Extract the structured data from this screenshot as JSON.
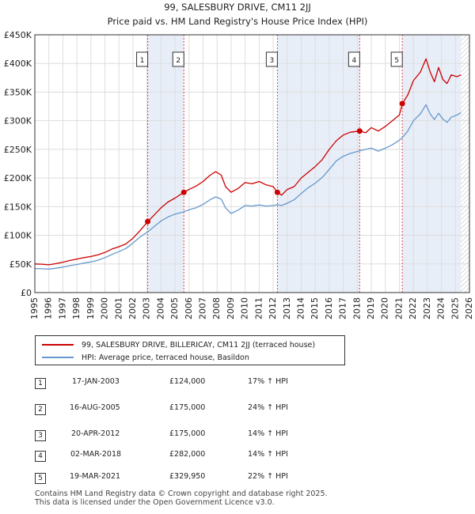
{
  "chart_data": {
    "type": "line",
    "title": [
      "99, SALESBURY DRIVE, CM11 2JJ",
      "Price paid vs. HM Land Registry's House Price Index (HPI)"
    ],
    "x_ticks": [
      "1995",
      "1996",
      "1997",
      "1998",
      "1999",
      "2000",
      "2001",
      "2002",
      "2003",
      "2004",
      "2005",
      "2006",
      "2007",
      "2008",
      "2009",
      "2010",
      "2011",
      "2012",
      "2013",
      "2014",
      "2015",
      "2016",
      "2017",
      "2018",
      "2019",
      "2020",
      "2021",
      "2022",
      "2023",
      "2024",
      "2025",
      "2026"
    ],
    "xlim": [
      1995,
      2026
    ],
    "y_ticks": [
      "£0",
      "£50K",
      "£100K",
      "£150K",
      "£200K",
      "£250K",
      "£300K",
      "£350K",
      "£400K",
      "£450K"
    ],
    "ylim": [
      0,
      450000
    ],
    "series": [
      {
        "name": "99, SALESBURY DRIVE, BILLERICAY, CM11 2JJ (terraced house)",
        "color": "#cc0000",
        "points": [
          [
            1995.0,
            50000
          ],
          [
            1995.5,
            49500
          ],
          [
            1996.0,
            48500
          ],
          [
            1996.5,
            50500
          ],
          [
            1997.0,
            53000
          ],
          [
            1997.5,
            56000
          ],
          [
            1998.0,
            58500
          ],
          [
            1998.5,
            61000
          ],
          [
            1999.0,
            63000
          ],
          [
            1999.5,
            66000
          ],
          [
            2000.0,
            70000
          ],
          [
            2000.5,
            76000
          ],
          [
            2001.0,
            80000
          ],
          [
            2001.5,
            85000
          ],
          [
            2002.0,
            95000
          ],
          [
            2002.5,
            108000
          ],
          [
            2003.05,
            124000
          ],
          [
            2003.5,
            135000
          ],
          [
            2004.0,
            148000
          ],
          [
            2004.5,
            158000
          ],
          [
            2005.0,
            165000
          ],
          [
            2005.63,
            175000
          ],
          [
            2006.0,
            180000
          ],
          [
            2006.5,
            186000
          ],
          [
            2007.0,
            194000
          ],
          [
            2007.5,
            205000
          ],
          [
            2007.9,
            211000
          ],
          [
            2008.3,
            205000
          ],
          [
            2008.6,
            185000
          ],
          [
            2009.0,
            175000
          ],
          [
            2009.5,
            182000
          ],
          [
            2010.0,
            192000
          ],
          [
            2010.5,
            190000
          ],
          [
            2011.0,
            194000
          ],
          [
            2011.5,
            188000
          ],
          [
            2012.0,
            185000
          ],
          [
            2012.3,
            175000
          ],
          [
            2012.6,
            170000
          ],
          [
            2013.0,
            180000
          ],
          [
            2013.5,
            185000
          ],
          [
            2014.0,
            200000
          ],
          [
            2014.5,
            210000
          ],
          [
            2015.0,
            220000
          ],
          [
            2015.5,
            232000
          ],
          [
            2016.0,
            250000
          ],
          [
            2016.5,
            265000
          ],
          [
            2017.0,
            275000
          ],
          [
            2017.5,
            280000
          ],
          [
            2018.17,
            282000
          ],
          [
            2018.6,
            279000
          ],
          [
            2019.0,
            288000
          ],
          [
            2019.5,
            282000
          ],
          [
            2020.0,
            290000
          ],
          [
            2020.5,
            300000
          ],
          [
            2021.0,
            310000
          ],
          [
            2021.21,
            329950
          ],
          [
            2021.6,
            345000
          ],
          [
            2022.0,
            370000
          ],
          [
            2022.5,
            385000
          ],
          [
            2022.9,
            408000
          ],
          [
            2023.2,
            385000
          ],
          [
            2023.5,
            368000
          ],
          [
            2023.8,
            393000
          ],
          [
            2024.1,
            372000
          ],
          [
            2024.4,
            365000
          ],
          [
            2024.7,
            380000
          ],
          [
            2025.1,
            377000
          ],
          [
            2025.4,
            380000
          ]
        ]
      },
      {
        "name": "HPI: Average price, terraced house, Basildon",
        "color": "#6699cc",
        "points": [
          [
            1995.0,
            42000
          ],
          [
            1995.5,
            41500
          ],
          [
            1996.0,
            41000
          ],
          [
            1996.5,
            42500
          ],
          [
            1997.0,
            44500
          ],
          [
            1997.5,
            47000
          ],
          [
            1998.0,
            49000
          ],
          [
            1998.5,
            51500
          ],
          [
            1999.0,
            53500
          ],
          [
            1999.5,
            56500
          ],
          [
            2000.0,
            61000
          ],
          [
            2000.5,
            66500
          ],
          [
            2001.0,
            71500
          ],
          [
            2001.5,
            77000
          ],
          [
            2002.0,
            86500
          ],
          [
            2002.5,
            97000
          ],
          [
            2003.05,
            106000
          ],
          [
            2003.5,
            115000
          ],
          [
            2004.0,
            125000
          ],
          [
            2004.5,
            132000
          ],
          [
            2005.0,
            137000
          ],
          [
            2005.63,
            141000
          ],
          [
            2006.0,
            144500
          ],
          [
            2006.5,
            148000
          ],
          [
            2007.0,
            154000
          ],
          [
            2007.5,
            162000
          ],
          [
            2007.9,
            167000
          ],
          [
            2008.3,
            163000
          ],
          [
            2008.6,
            148000
          ],
          [
            2009.0,
            138000
          ],
          [
            2009.5,
            144000
          ],
          [
            2010.0,
            152000
          ],
          [
            2010.5,
            151000
          ],
          [
            2011.0,
            153000
          ],
          [
            2011.5,
            151000
          ],
          [
            2012.0,
            152000
          ],
          [
            2012.3,
            153500
          ],
          [
            2012.6,
            152000
          ],
          [
            2013.0,
            156000
          ],
          [
            2013.5,
            162000
          ],
          [
            2014.0,
            173000
          ],
          [
            2014.5,
            183000
          ],
          [
            2015.0,
            191000
          ],
          [
            2015.5,
            201000
          ],
          [
            2016.0,
            215000
          ],
          [
            2016.5,
            230000
          ],
          [
            2017.0,
            238000
          ],
          [
            2017.5,
            243000
          ],
          [
            2018.17,
            247400
          ],
          [
            2018.6,
            250000
          ],
          [
            2019.0,
            252000
          ],
          [
            2019.5,
            247000
          ],
          [
            2020.0,
            252000
          ],
          [
            2020.5,
            258000
          ],
          [
            2021.0,
            266000
          ],
          [
            2021.21,
            270400
          ],
          [
            2021.6,
            282000
          ],
          [
            2022.0,
            300000
          ],
          [
            2022.5,
            312000
          ],
          [
            2022.9,
            328000
          ],
          [
            2023.2,
            312000
          ],
          [
            2023.5,
            302000
          ],
          [
            2023.8,
            313000
          ],
          [
            2024.1,
            303000
          ],
          [
            2024.4,
            297000
          ],
          [
            2024.7,
            306000
          ],
          [
            2025.1,
            310000
          ],
          [
            2025.4,
            314000
          ]
        ]
      }
    ],
    "sales": [
      {
        "n": "1",
        "x": 2003.05,
        "price": 124000
      },
      {
        "n": "2",
        "x": 2005.63,
        "price": 175000
      },
      {
        "n": "3",
        "x": 2012.3,
        "price": 175000
      },
      {
        "n": "4",
        "x": 2018.17,
        "price": 282000
      },
      {
        "n": "5",
        "x": 2021.21,
        "price": 329950
      }
    ],
    "shade_ranges": [
      [
        2003.05,
        2005.63
      ],
      [
        2012.3,
        2018.17
      ],
      [
        2021.21,
        2025.4
      ]
    ],
    "hatch_from": 2025.4
  },
  "legend": {
    "property": "99, SALESBURY DRIVE, BILLERICAY, CM11 2JJ (terraced house)",
    "hpi": "HPI: Average price, terraced house, Basildon"
  },
  "table": [
    {
      "n": "1",
      "date": "17-JAN-2003",
      "price": "£124,000",
      "hpi": "17% ↑ HPI"
    },
    {
      "n": "2",
      "date": "16-AUG-2005",
      "price": "£175,000",
      "hpi": "24% ↑ HPI"
    },
    {
      "n": "3",
      "date": "20-APR-2012",
      "price": "£175,000",
      "hpi": "14% ↑ HPI"
    },
    {
      "n": "4",
      "date": "02-MAR-2018",
      "price": "£282,000",
      "hpi": "14% ↑ HPI"
    },
    {
      "n": "5",
      "date": "19-MAR-2021",
      "price": "£329,950",
      "hpi": "22% ↑ HPI"
    }
  ],
  "footer": [
    "Contains HM Land Registry data © Crown copyright and database right 2025.",
    "This data is licensed under the Open Government Licence v3.0."
  ]
}
